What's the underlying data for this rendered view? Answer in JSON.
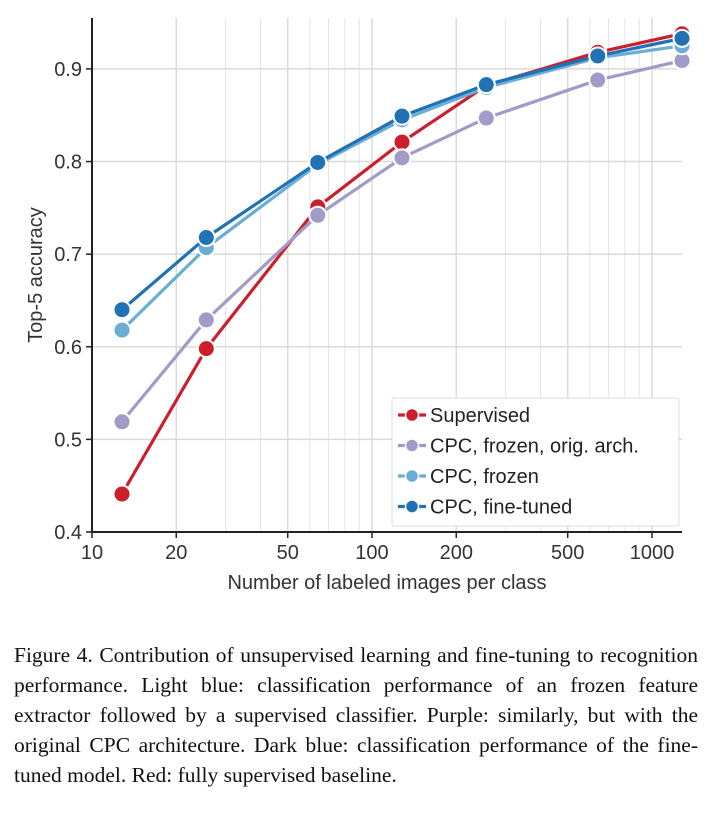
{
  "chart_data": {
    "type": "line",
    "xlabel": "Number of labeled images per class",
    "ylabel": "Top-5 accuracy",
    "xscale": "log",
    "xlim": [
      10,
      1280
    ],
    "ylim": [
      0.4,
      0.955
    ],
    "xticks": [
      10,
      20,
      50,
      100,
      200,
      500,
      1000
    ],
    "xtick_labels": [
      "10",
      "20",
      "50",
      "100",
      "200",
      "500",
      "1000"
    ],
    "yticks": [
      0.4,
      0.5,
      0.6,
      0.7,
      0.8,
      0.9
    ],
    "ytick_labels": [
      "0.4",
      "0.5",
      "0.6",
      "0.7",
      "0.8",
      "0.9"
    ],
    "grid": true,
    "legend_position": "lower-right",
    "x": [
      12.8,
      25.6,
      64,
      128,
      256,
      640,
      1280
    ],
    "series": [
      {
        "name": "Supervised",
        "color": "#cc1f2b",
        "values": [
          0.441,
          0.598,
          0.751,
          0.821,
          0.882,
          0.918,
          0.938
        ]
      },
      {
        "name": "CPC, frozen, orig. arch.",
        "color": "#a09bc8",
        "values": [
          0.519,
          0.629,
          0.742,
          0.804,
          0.847,
          0.888,
          0.909
        ]
      },
      {
        "name": "CPC, frozen",
        "color": "#6aaed6",
        "values": [
          0.618,
          0.707,
          0.797,
          0.845,
          0.88,
          0.912,
          0.925
        ]
      },
      {
        "name": "CPC, fine-tuned",
        "color": "#2171b5",
        "values": [
          0.64,
          0.718,
          0.799,
          0.849,
          0.883,
          0.914,
          0.933
        ]
      }
    ]
  },
  "caption": "Figure 4. Contribution of unsupervised learning and fine-tuning to recognition performance. Light blue: classification performance of an frozen feature extractor followed by a supervised classifier. Purple: similarly, but with the original CPC architecture. Dark blue: classification performance of the fine-tuned model. Red: fully supervised baseline."
}
